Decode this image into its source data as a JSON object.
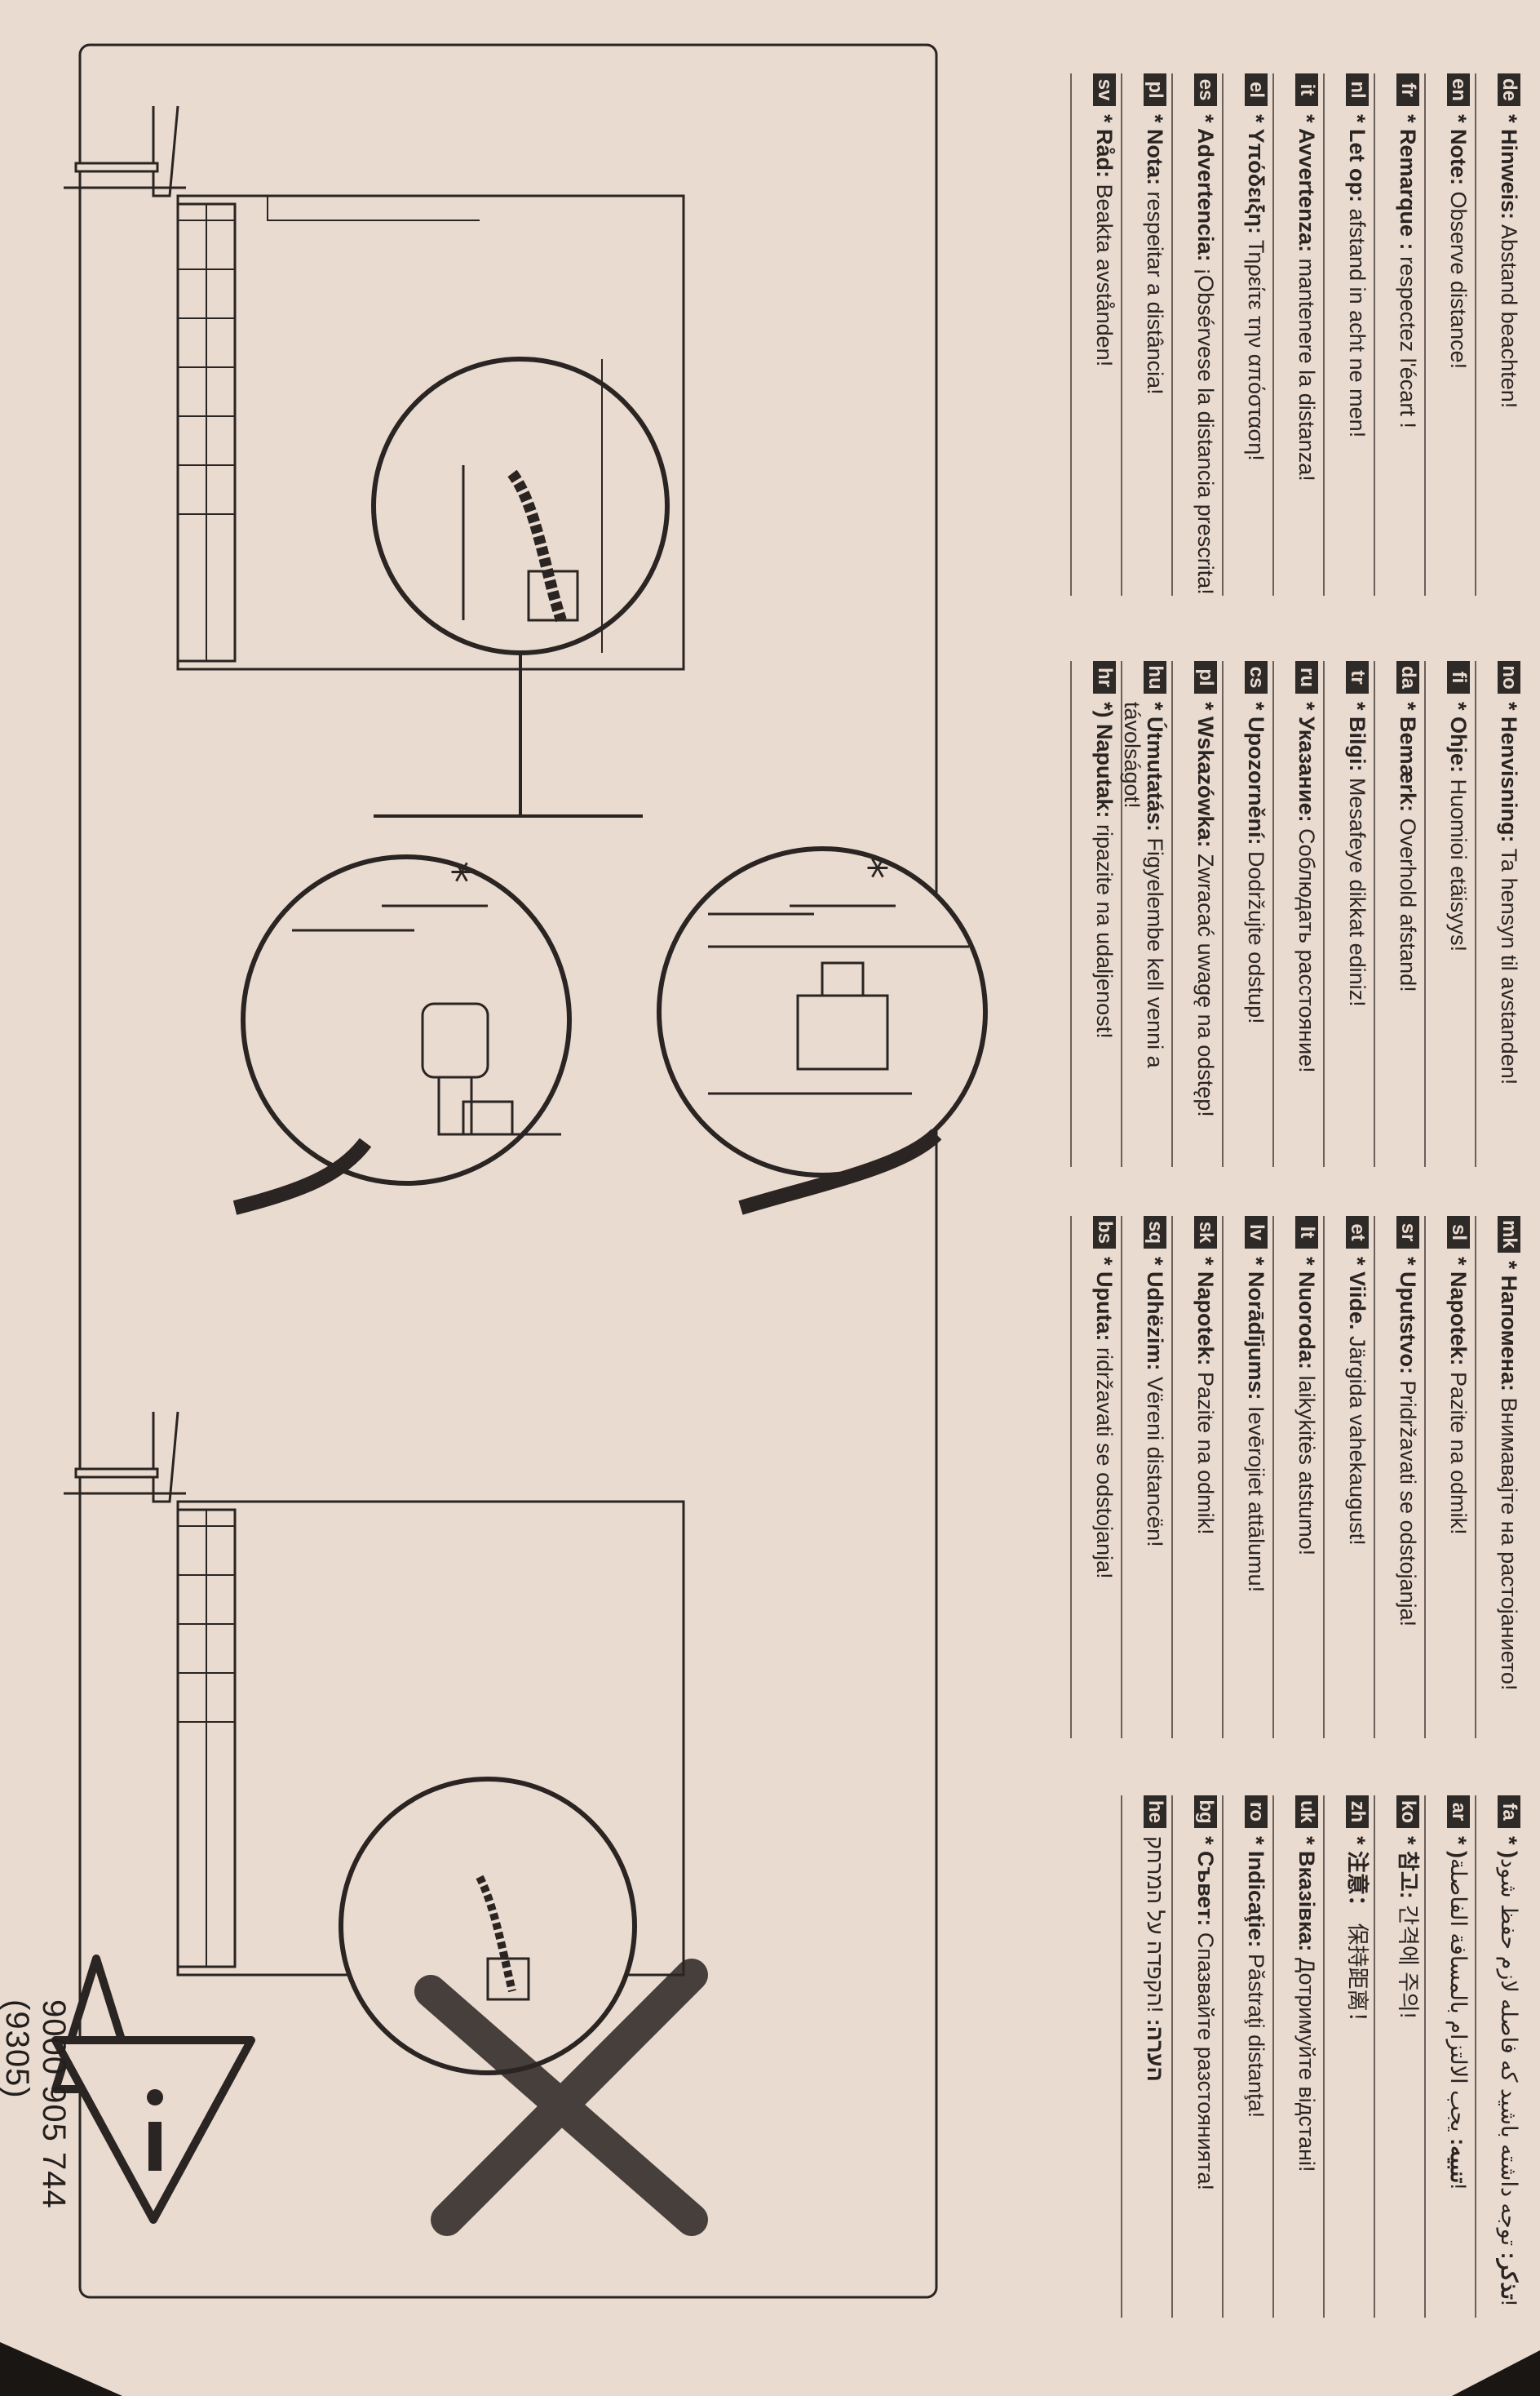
{
  "document": {
    "number": "9000 905 744 (9305)"
  },
  "columns": [
    {
      "rows": [
        {
          "code": "de",
          "label": "* Hinweis:",
          "text": "Abstand beachten!"
        },
        {
          "code": "en",
          "label": "* Note:",
          "text": "Observe distance!"
        },
        {
          "code": "fr",
          "label": "* Remarque :",
          "text": "respectez l'écart !"
        },
        {
          "code": "nl",
          "label": "* Let op:",
          "text": "afstand in acht ne men!"
        },
        {
          "code": "it",
          "label": "* Avvertenza:",
          "text": "mantenere la distanza!"
        },
        {
          "code": "el",
          "label": "* Υπόδειξη:",
          "text": "Τηρείτε την απόσταση!"
        },
        {
          "code": "es",
          "label": "* Advertencia:",
          "text": "¡Obsérvese la distancia prescrita!"
        },
        {
          "code": "pl",
          "label": "* Nota:",
          "text": "respeitar a distância!"
        },
        {
          "code": "sv",
          "label": "* Råd:",
          "text": "Beakta avstånden!"
        }
      ]
    },
    {
      "rows": [
        {
          "code": "no",
          "label": "* Henvisning:",
          "text": "Ta hensyn til avstanden!"
        },
        {
          "code": "fi",
          "label": "* Ohje:",
          "text": "Huomioi etäisyys!"
        },
        {
          "code": "da",
          "label": "* Bemærk:",
          "text": "Overhold afstand!"
        },
        {
          "code": "tr",
          "label": "* Bilgi:",
          "text": "Mesafeye dikkat ediniz!"
        },
        {
          "code": "ru",
          "label": "* Указание:",
          "text": "Соблюдать расстояние!"
        },
        {
          "code": "cs",
          "label": "* Upozornění:",
          "text": "Dodržujte odstup!"
        },
        {
          "code": "pl",
          "label": "* Wskazówka:",
          "text": "Zwracać uwagę na odstęp!"
        },
        {
          "code": "hu",
          "label": "* Útmutatás:",
          "text": "Figyelembe kell venni a távolságot!"
        },
        {
          "code": "hr",
          "label": "*) Naputak:",
          "text": "ripazite na udaljenost!"
        }
      ]
    },
    {
      "rows": [
        {
          "code": "mk",
          "label": "* Напомена:",
          "text": "Внимавајте на растојанието!"
        },
        {
          "code": "sl",
          "label": "* Napotek:",
          "text": "Pazite na odmik!"
        },
        {
          "code": "sr",
          "label": "* Uputstvo:",
          "text": "Pridržavati se odstojanja!"
        },
        {
          "code": "et",
          "label": "* Viide.",
          "text": "Järgida vahekaugust!"
        },
        {
          "code": "lt",
          "label": "* Nuoroda:",
          "text": "laikykitės atstumo!"
        },
        {
          "code": "lv",
          "label": "* Norādījums:",
          "text": "Ievērojiet attālumu!"
        },
        {
          "code": "sk",
          "label": "* Napotek:",
          "text": "Pazite na odmik!"
        },
        {
          "code": "sq",
          "label": "* Udhëzim:",
          "text": "Vëreni distancën!"
        },
        {
          "code": "bs",
          "label": "* Uputa:",
          "text": "ridržavati se odstojanja!"
        }
      ]
    },
    {
      "rows": [
        {
          "code": "fa",
          "label": "* )تذکر:",
          "text": "توجه داشته باشید که فاصله لازم حفظ شود!"
        },
        {
          "code": "ar",
          "label": "* )تنبيه:",
          "text": "يجب الالتزام بالمسافة الفاصلة!"
        },
        {
          "code": "ko",
          "label": "* 참고:",
          "text": "간격에 주의!"
        },
        {
          "code": "zh",
          "label": "* 注意：",
          "text": "保持距离！"
        },
        {
          "code": "uk",
          "label": "* Вказівка:",
          "text": "Дотримуйте відстані!"
        },
        {
          "code": "ro",
          "label": "* Indicaţie:",
          "text": "Păstraţi distanţa!"
        },
        {
          "code": "bg",
          "label": "* Съвет:",
          "text": "Спазвайте разстоянията!"
        },
        {
          "code": "he",
          "label": "הערה:",
          "text": "!הקפדה על המרחק"
        }
      ]
    }
  ],
  "illustrations": {
    "asterisk": "*",
    "icons": [
      "drain-hose-detail-icon",
      "tap-valve-icon",
      "power-plug-icon",
      "wrong-cross-icon",
      "warning-triangle-icon"
    ]
  }
}
